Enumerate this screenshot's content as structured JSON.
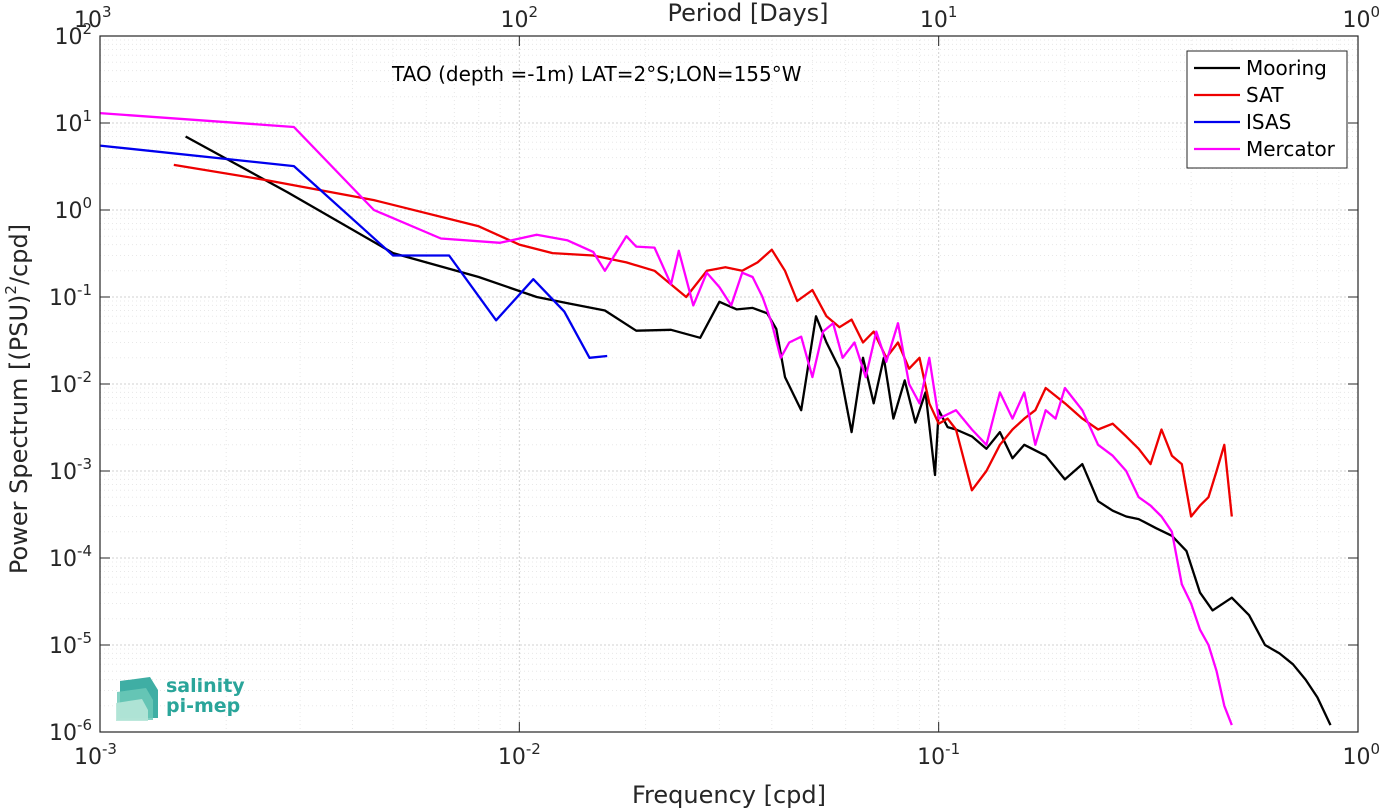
{
  "chart_data": {
    "type": "line",
    "title": "",
    "annotation": "TAO (depth =-1m) LAT=2°S;LON=155°W",
    "xlabel": "Frequency [cpd]",
    "ylabel": "Power Spectrum [(PSU)^2/cpd]",
    "ylabel_parts": {
      "pre": "Power Spectrum [(PSU)",
      "sup": "2",
      "post": "/cpd]"
    },
    "top_xlabel": "Period [Days]",
    "xscale": "log",
    "yscale": "log",
    "xlim": [
      0.001,
      1
    ],
    "ylim": [
      1e-06,
      100
    ],
    "grid": "on (major and minor)",
    "legend_position": "top-right",
    "x_ticks": [
      {
        "base": "10",
        "exp": "-3"
      },
      {
        "base": "10",
        "exp": "-2"
      },
      {
        "base": "10",
        "exp": "-1"
      },
      {
        "base": "10",
        "exp": "0"
      }
    ],
    "top_ticks": [
      {
        "base": "10",
        "exp": "3"
      },
      {
        "base": "10",
        "exp": "2"
      },
      {
        "base": "10",
        "exp": "1"
      },
      {
        "base": "10",
        "exp": "0"
      }
    ],
    "y_ticks": [
      {
        "base": "10",
        "exp": "-6"
      },
      {
        "base": "10",
        "exp": "-5"
      },
      {
        "base": "10",
        "exp": "-4"
      },
      {
        "base": "10",
        "exp": "-3"
      },
      {
        "base": "10",
        "exp": "-2"
      },
      {
        "base": "10",
        "exp": "-1"
      },
      {
        "base": "10",
        "exp": "0"
      },
      {
        "base": "10",
        "exp": "1"
      },
      {
        "base": "10",
        "exp": "2"
      }
    ],
    "series": [
      {
        "name": "Mooring",
        "color": "#000000",
        "x": [
          0.0016,
          0.0028,
          0.005,
          0.008,
          0.011,
          0.013,
          0.016,
          0.019,
          0.023,
          0.027,
          0.03,
          0.033,
          0.036,
          0.039,
          0.041,
          0.043,
          0.047,
          0.051,
          0.054,
          0.058,
          0.062,
          0.066,
          0.07,
          0.074,
          0.078,
          0.083,
          0.088,
          0.093,
          0.098,
          0.1,
          0.105,
          0.11,
          0.12,
          0.13,
          0.14,
          0.15,
          0.16,
          0.18,
          0.2,
          0.22,
          0.24,
          0.26,
          0.28,
          0.3,
          0.33,
          0.36,
          0.39,
          0.42,
          0.45,
          0.5,
          0.55,
          0.6,
          0.65,
          0.7,
          0.75,
          0.8,
          0.86
        ],
        "y": [
          7,
          1.6,
          0.32,
          0.17,
          0.1,
          0.085,
          0.07,
          0.041,
          0.042,
          0.034,
          0.088,
          0.072,
          0.075,
          0.065,
          0.043,
          0.012,
          0.005,
          0.06,
          0.03,
          0.015,
          0.0028,
          0.02,
          0.006,
          0.02,
          0.004,
          0.011,
          0.0036,
          0.008,
          0.0009,
          0.005,
          0.0032,
          0.003,
          0.0025,
          0.0018,
          0.0028,
          0.0014,
          0.002,
          0.0015,
          0.0008,
          0.0012,
          0.00045,
          0.00035,
          0.0003,
          0.00028,
          0.00022,
          0.00018,
          0.00012,
          4e-05,
          2.5e-05,
          3.5e-05,
          2.2e-05,
          1e-05,
          8e-06,
          6e-06,
          4e-06,
          2.5e-06,
          1.2e-06
        ]
      },
      {
        "name": "SAT",
        "color": "#ee0000",
        "x": [
          0.0015,
          0.0025,
          0.0045,
          0.008,
          0.01,
          0.012,
          0.015,
          0.018,
          0.021,
          0.025,
          0.028,
          0.031,
          0.034,
          0.037,
          0.04,
          0.043,
          0.046,
          0.05,
          0.054,
          0.058,
          0.062,
          0.066,
          0.07,
          0.075,
          0.08,
          0.085,
          0.09,
          0.095,
          0.1,
          0.105,
          0.11,
          0.12,
          0.13,
          0.14,
          0.15,
          0.16,
          0.17,
          0.18,
          0.2,
          0.22,
          0.24,
          0.26,
          0.28,
          0.3,
          0.32,
          0.34,
          0.36,
          0.38,
          0.4,
          0.42,
          0.44,
          0.46,
          0.48,
          0.5
        ],
        "y": [
          3.3,
          2.2,
          1.3,
          0.65,
          0.4,
          0.32,
          0.3,
          0.25,
          0.2,
          0.1,
          0.2,
          0.22,
          0.2,
          0.25,
          0.35,
          0.2,
          0.09,
          0.12,
          0.06,
          0.045,
          0.055,
          0.03,
          0.04,
          0.02,
          0.03,
          0.015,
          0.02,
          0.006,
          0.0035,
          0.004,
          0.003,
          0.0006,
          0.001,
          0.002,
          0.003,
          0.004,
          0.005,
          0.009,
          0.006,
          0.004,
          0.003,
          0.0035,
          0.0025,
          0.0018,
          0.0012,
          0.003,
          0.0015,
          0.0012,
          0.0003,
          0.0004,
          0.0005,
          0.001,
          0.002,
          0.0003
        ]
      },
      {
        "name": "ISAS",
        "color": "#0000ee",
        "x": [
          0.001,
          0.0029,
          0.005,
          0.0068,
          0.0088,
          0.0108,
          0.0128,
          0.0147,
          0.0162
        ],
        "y": [
          5.5,
          3.2,
          0.3,
          0.3,
          0.054,
          0.16,
          0.068,
          0.02,
          0.021
        ]
      },
      {
        "name": "Mercator",
        "color": "#ff00ff",
        "x": [
          0.001,
          0.0029,
          0.0045,
          0.0065,
          0.009,
          0.011,
          0.013,
          0.015,
          0.016,
          0.018,
          0.019,
          0.021,
          0.023,
          0.024,
          0.026,
          0.028,
          0.03,
          0.032,
          0.034,
          0.036,
          0.038,
          0.04,
          0.042,
          0.044,
          0.047,
          0.05,
          0.053,
          0.056,
          0.059,
          0.063,
          0.067,
          0.071,
          0.075,
          0.08,
          0.085,
          0.09,
          0.095,
          0.1,
          0.11,
          0.12,
          0.13,
          0.14,
          0.15,
          0.16,
          0.17,
          0.18,
          0.19,
          0.2,
          0.22,
          0.24,
          0.26,
          0.28,
          0.3,
          0.32,
          0.34,
          0.36,
          0.38,
          0.4,
          0.42,
          0.44,
          0.46,
          0.48,
          0.5
        ],
        "y": [
          13,
          9,
          1,
          0.47,
          0.42,
          0.52,
          0.45,
          0.33,
          0.2,
          0.5,
          0.38,
          0.37,
          0.14,
          0.34,
          0.08,
          0.19,
          0.13,
          0.08,
          0.19,
          0.17,
          0.1,
          0.05,
          0.02,
          0.03,
          0.035,
          0.012,
          0.04,
          0.05,
          0.02,
          0.03,
          0.012,
          0.04,
          0.018,
          0.05,
          0.01,
          0.006,
          0.02,
          0.004,
          0.005,
          0.003,
          0.002,
          0.008,
          0.004,
          0.008,
          0.002,
          0.005,
          0.004,
          0.009,
          0.005,
          0.002,
          0.0015,
          0.001,
          0.0005,
          0.0004,
          0.0003,
          0.0002,
          5e-05,
          3e-05,
          1.5e-05,
          1e-05,
          5e-06,
          2e-06,
          1.2e-06
        ]
      }
    ]
  },
  "logo": {
    "line1": "salinity",
    "line2": "pi-mep",
    "color": "#2aa59a"
  }
}
